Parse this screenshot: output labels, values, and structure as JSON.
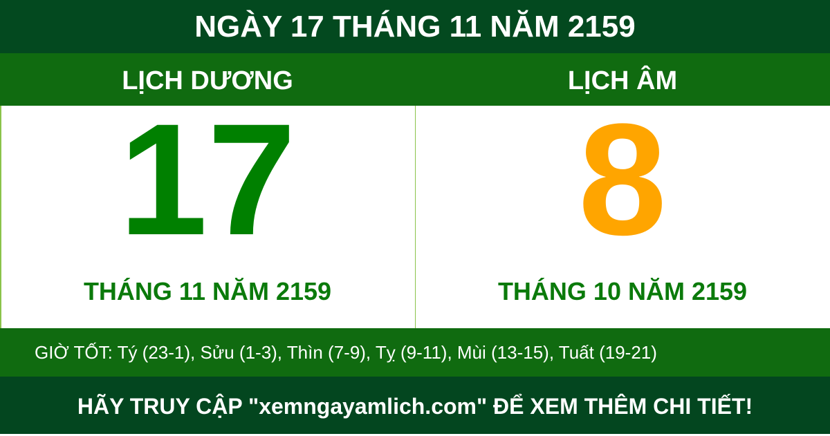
{
  "header": {
    "title": "NGÀY 17 THÁNG 11 NĂM 2159"
  },
  "solar": {
    "label": "LỊCH DƯƠNG",
    "day": "17",
    "month_year": "THÁNG 11 NĂM 2159",
    "color": "#008000"
  },
  "lunar": {
    "label": "LỊCH ÂM",
    "day": "8",
    "month_year": "THÁNG 10 NĂM 2159",
    "color": "#ffa500"
  },
  "good_hours": "GIỜ TỐT: Tý (23-1), Sửu (1-3), Thìn (7-9), Tỵ (9-11), Mùi (13-15), Tuất (19-21)",
  "footer": {
    "text": "HÃY TRUY CẬP \"xemngayamlich.com\" ĐỂ XEM THÊM CHI TIẾT!"
  }
}
